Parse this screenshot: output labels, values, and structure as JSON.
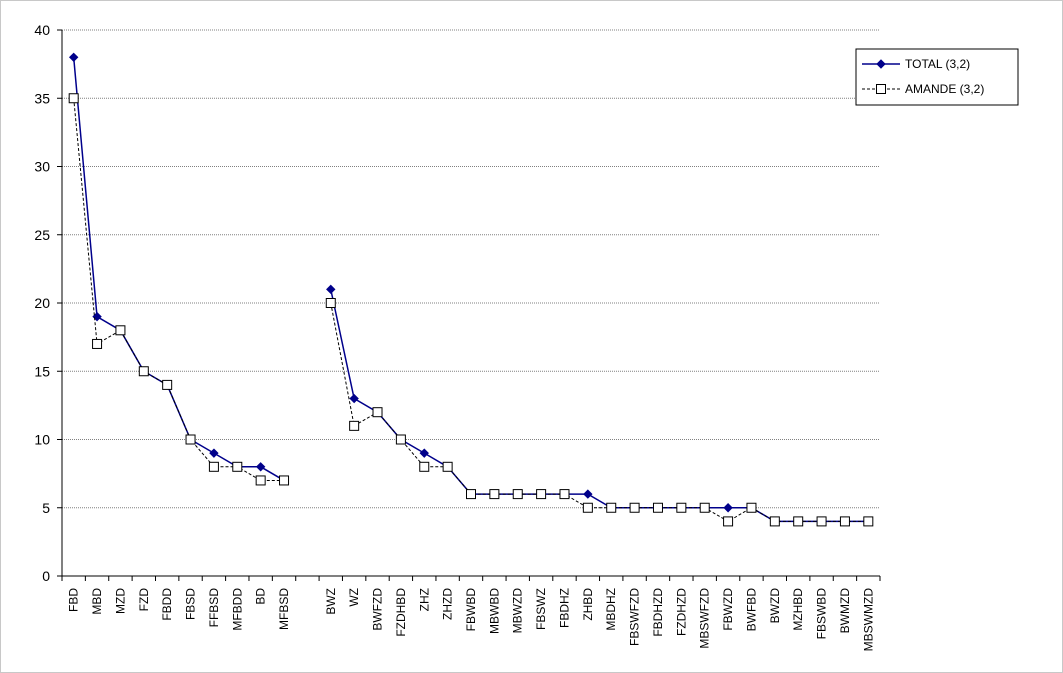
{
  "chart_data": {
    "type": "line",
    "title": "",
    "xlabel": "",
    "ylabel": "",
    "ylim": [
      0,
      40
    ],
    "yticks": [
      0,
      5,
      10,
      15,
      20,
      25,
      30,
      35,
      40
    ],
    "grid": true,
    "legend_position": "top-right",
    "categories": [
      "FBD",
      "MBD",
      "MZD",
      "FZD",
      "FBDD",
      "FBSD",
      "FFBSD",
      "MFBDD",
      "BD",
      "MFBSD",
      "",
      "BWZ",
      "WZ",
      "BWFZD",
      "FZDHBD",
      "ZHZ",
      "ZHZD",
      "FBWBD",
      "MBWBD",
      "MBWZD",
      "FBSWZ",
      "FBDHZ",
      "ZHBD",
      "MBDHZ",
      "FBSWFZD",
      "FBDHZD",
      "FZDHZD",
      "MBSWFZD",
      "FBWZD",
      "BWFBD",
      "BWZD",
      "MZHBD",
      "FBSWBD",
      "BWMZD",
      "MBSWMZD"
    ],
    "series": [
      {
        "name": "TOTAL (3,2)",
        "color": "#00008b",
        "marker": "diamond",
        "line_style": "solid",
        "values": [
          38,
          19,
          18,
          15,
          14,
          10,
          9,
          8,
          8,
          7,
          null,
          21,
          13,
          12,
          10,
          9,
          8,
          6,
          6,
          6,
          6,
          6,
          6,
          5,
          5,
          5,
          5,
          5,
          5,
          5,
          4,
          4,
          4,
          4,
          4
        ]
      },
      {
        "name": "AMANDE (3,2)",
        "color": "#000000",
        "marker": "square-open",
        "line_style": "dashed",
        "values": [
          35,
          17,
          18,
          15,
          14,
          10,
          8,
          8,
          7,
          7,
          null,
          20,
          11,
          12,
          10,
          8,
          8,
          6,
          6,
          6,
          6,
          6,
          5,
          5,
          5,
          5,
          5,
          5,
          4,
          5,
          4,
          4,
          4,
          4,
          4
        ]
      }
    ]
  }
}
